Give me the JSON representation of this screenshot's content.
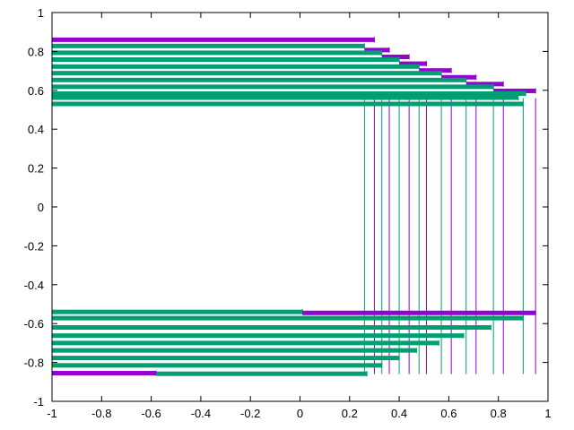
{
  "chart_data": {
    "type": "bar",
    "orientation": "horizontal",
    "title": "",
    "xlabel": "",
    "ylabel": "",
    "xlim": [
      -1,
      1
    ],
    "ylim": [
      -1,
      1
    ],
    "grid": false,
    "legend": "none",
    "colors": {
      "purple": "#9400d3",
      "teal": "#009e73",
      "axis": "#000000"
    },
    "xticks": [
      {
        "v": -1,
        "label": "-1"
      },
      {
        "v": -0.8,
        "label": "-0.8"
      },
      {
        "v": -0.6,
        "label": "-0.6"
      },
      {
        "v": -0.4,
        "label": "-0.4"
      },
      {
        "v": -0.2,
        "label": "-0.2"
      },
      {
        "v": 0,
        "label": "0"
      },
      {
        "v": 0.2,
        "label": "0.2"
      },
      {
        "v": 0.4,
        "label": "0.4"
      },
      {
        "v": 0.6,
        "label": "0.6"
      },
      {
        "v": 0.8,
        "label": "0.8"
      },
      {
        "v": 1,
        "label": "1"
      }
    ],
    "yticks": [
      {
        "v": -1,
        "label": "-1"
      },
      {
        "v": -0.8,
        "label": "-0.8"
      },
      {
        "v": -0.6,
        "label": "-0.6"
      },
      {
        "v": -0.4,
        "label": "-0.4"
      },
      {
        "v": -0.2,
        "label": "-0.2"
      },
      {
        "v": 0,
        "label": "0"
      },
      {
        "v": 0.2,
        "label": "0.2"
      },
      {
        "v": 0.4,
        "label": "0.4"
      },
      {
        "v": 0.6,
        "label": "0.6"
      },
      {
        "v": 0.8,
        "label": "0.8"
      },
      {
        "v": 1,
        "label": "1"
      }
    ],
    "top_bars": [
      {
        "y": 0.86,
        "x_start": -1,
        "x_end": 0.3,
        "color": "purple"
      },
      {
        "y": 0.828,
        "x_start": -1,
        "x_end": 0.26,
        "color": "teal"
      },
      {
        "y": 0.807,
        "x_start": 0.26,
        "x_end": 0.36,
        "color": "purple"
      },
      {
        "y": 0.793,
        "x_start": -1,
        "x_end": 0.33,
        "color": "teal"
      },
      {
        "y": 0.772,
        "x_start": 0.33,
        "x_end": 0.44,
        "color": "purple"
      },
      {
        "y": 0.758,
        "x_start": -1,
        "x_end": 0.4,
        "color": "teal"
      },
      {
        "y": 0.737,
        "x_start": 0.4,
        "x_end": 0.51,
        "color": "purple"
      },
      {
        "y": 0.722,
        "x_start": -1,
        "x_end": 0.48,
        "color": "teal"
      },
      {
        "y": 0.702,
        "x_start": 0.48,
        "x_end": 0.61,
        "color": "purple"
      },
      {
        "y": 0.688,
        "x_start": -1,
        "x_end": 0.57,
        "color": "teal"
      },
      {
        "y": 0.667,
        "x_start": 0.57,
        "x_end": 0.71,
        "color": "purple"
      },
      {
        "y": 0.653,
        "x_start": -1,
        "x_end": 0.67,
        "color": "teal"
      },
      {
        "y": 0.632,
        "x_start": 0.67,
        "x_end": 0.82,
        "color": "purple"
      },
      {
        "y": 0.618,
        "x_start": -1,
        "x_end": 0.78,
        "color": "teal"
      },
      {
        "y": 0.597,
        "x_start": 0.78,
        "x_end": 0.95,
        "color": "purple"
      },
      {
        "y": 0.583,
        "x_start": -1,
        "x_end": 0.91,
        "color": "teal"
      },
      {
        "y": 0.562,
        "x_start": -1,
        "x_end": 0.88,
        "color": "teal"
      },
      {
        "y": 0.53,
        "x_start": -1,
        "x_end": 0.9,
        "color": "teal"
      }
    ],
    "bottom_bars": [
      {
        "y": -0.54,
        "x_start": -1,
        "x_end": 0.01,
        "color": "teal"
      },
      {
        "y": -0.545,
        "x_start": 0.01,
        "x_end": 0.95,
        "color": "purple"
      },
      {
        "y": -0.572,
        "x_start": -1,
        "x_end": 0.9,
        "color": "teal"
      },
      {
        "y": -0.62,
        "x_start": -1,
        "x_end": 0.77,
        "color": "teal"
      },
      {
        "y": -0.662,
        "x_start": -1,
        "x_end": 0.66,
        "color": "teal"
      },
      {
        "y": -0.7,
        "x_start": -1,
        "x_end": 0.56,
        "color": "teal"
      },
      {
        "y": -0.738,
        "x_start": -1,
        "x_end": 0.47,
        "color": "teal"
      },
      {
        "y": -0.777,
        "x_start": -1,
        "x_end": 0.4,
        "color": "teal"
      },
      {
        "y": -0.815,
        "x_start": -1,
        "x_end": 0.33,
        "color": "teal"
      },
      {
        "y": -0.855,
        "x_start": -1,
        "x_end": -0.58,
        "color": "purple"
      },
      {
        "y": -0.858,
        "x_start": -0.58,
        "x_end": 0.27,
        "color": "teal"
      }
    ],
    "vertical_lines": [
      {
        "x": 0.26,
        "color": "teal"
      },
      {
        "x": 0.3,
        "color": "purple"
      },
      {
        "x": 0.33,
        "color": "teal"
      },
      {
        "x": 0.36,
        "color": "purple"
      },
      {
        "x": 0.4,
        "color": "teal"
      },
      {
        "x": 0.44,
        "color": "purple"
      },
      {
        "x": 0.48,
        "color": "teal"
      },
      {
        "x": 0.51,
        "color": "purple"
      },
      {
        "x": 0.57,
        "color": "teal"
      },
      {
        "x": 0.61,
        "color": "purple"
      },
      {
        "x": 0.67,
        "color": "teal"
      },
      {
        "x": 0.71,
        "color": "purple"
      },
      {
        "x": 0.78,
        "color": "teal"
      },
      {
        "x": 0.82,
        "color": "purple"
      },
      {
        "x": 0.9,
        "color": "teal"
      },
      {
        "x": 0.95,
        "color": "purple"
      }
    ],
    "vertical_line_range": [
      -0.86,
      0.56
    ]
  }
}
